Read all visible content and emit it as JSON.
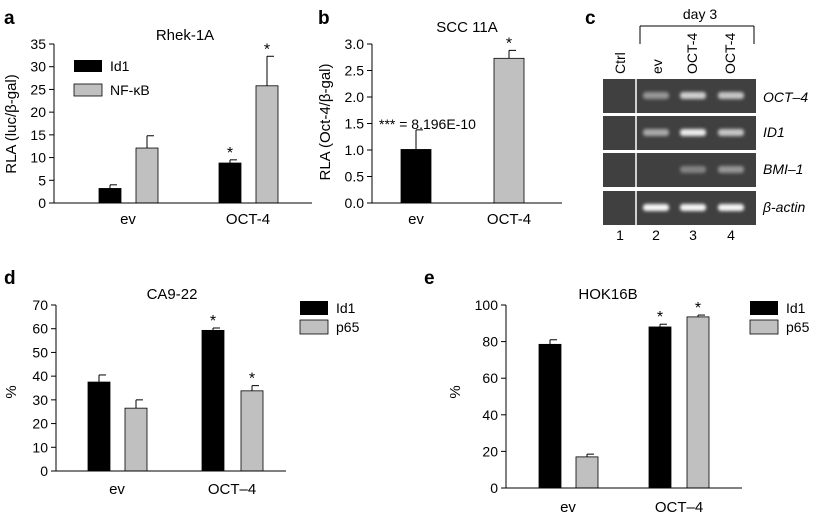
{
  "colors": {
    "series_dark": "#000000",
    "series_light": "#c0c0c0",
    "gel_bg": "#404040",
    "band": "#ffffff"
  },
  "chart_data": [
    {
      "panel": "a",
      "type": "bar",
      "title": "Rhek-1A",
      "ylabel": "RLA (luc/β-gal)",
      "xlabel": "",
      "ylim": [
        0,
        35
      ],
      "yticks": [
        "0",
        "5",
        "10",
        "15",
        "20",
        "25",
        "30",
        "35"
      ],
      "categories": [
        "ev",
        "OCT-4"
      ],
      "series": [
        {
          "name": "Id1",
          "color": "dark",
          "values": [
            3.2,
            8.8
          ],
          "errors": [
            0.8,
            0.7
          ],
          "stars": [
            "",
            "*"
          ]
        },
        {
          "name": "NF-κB",
          "color": "light",
          "values": [
            12.1,
            25.8
          ],
          "errors": [
            2.7,
            6.5
          ],
          "stars": [
            "",
            "*"
          ]
        }
      ],
      "legend": "top-left"
    },
    {
      "panel": "b",
      "type": "bar",
      "title": "SCC 11A",
      "ylabel": "RLA (Oct-4/β-gal)",
      "xlabel": "",
      "ylim": [
        0,
        3.0
      ],
      "yticks": [
        "0.0",
        "0.5",
        "1.0",
        "1.5",
        "2.0",
        "2.5",
        "3.0"
      ],
      "categories": [
        "ev",
        "OCT-4"
      ],
      "annotation": "*** = 8.196E-10",
      "series": [
        {
          "name": "RLA",
          "color": "mixed",
          "values": [
            1.01,
            2.73
          ],
          "errors": [
            0.37,
            0.15
          ],
          "stars": [
            "",
            "*"
          ]
        }
      ]
    },
    {
      "panel": "d",
      "type": "bar",
      "title": "CA9-22",
      "ylabel": "%",
      "xlabel": "",
      "ylim": [
        0,
        70
      ],
      "yticks": [
        "0",
        "10",
        "20",
        "30",
        "40",
        "50",
        "60",
        "70"
      ],
      "categories": [
        "ev",
        "OCT–4"
      ],
      "series": [
        {
          "name": "Id1",
          "color": "dark",
          "values": [
            37.5,
            59.3
          ],
          "errors": [
            3.0,
            1.0
          ],
          "stars": [
            "",
            "*"
          ]
        },
        {
          "name": "p65",
          "color": "light",
          "values": [
            26.5,
            33.8
          ],
          "errors": [
            3.5,
            2.2
          ],
          "stars": [
            "",
            "*"
          ]
        }
      ],
      "legend": "top-right"
    },
    {
      "panel": "e",
      "type": "bar",
      "title": "HOK16B",
      "ylabel": "%",
      "xlabel": "",
      "ylim": [
        0,
        100
      ],
      "yticks": [
        "0",
        "20",
        "40",
        "60",
        "80",
        "100"
      ],
      "categories": [
        "ev",
        "OCT–4"
      ],
      "series": [
        {
          "name": "Id1",
          "color": "dark",
          "values": [
            78.5,
            88.0
          ],
          "errors": [
            2.5,
            1.5
          ],
          "stars": [
            "",
            "*"
          ]
        },
        {
          "name": "p65",
          "color": "light",
          "values": [
            17.0,
            93.5
          ],
          "errors": [
            1.5,
            1.0
          ],
          "stars": [
            "",
            "*"
          ]
        }
      ],
      "legend": "top-right"
    }
  ],
  "gel": {
    "panel": "c",
    "header": "day 3",
    "lanes_top": [
      "Ctrl",
      "ev",
      "OCT-4",
      "OCT-4"
    ],
    "lane_numbers": [
      "1",
      "2",
      "3",
      "4"
    ],
    "rows": [
      {
        "gene": "OCT–4",
        "bands": [
          0.0,
          0.45,
          0.75,
          0.7
        ]
      },
      {
        "gene": "ID1",
        "bands": [
          0.0,
          0.55,
          0.9,
          0.7
        ]
      },
      {
        "gene": "BMI–1",
        "bands": [
          0.0,
          0.0,
          0.35,
          0.45
        ]
      },
      {
        "gene": "β-actin",
        "bands": [
          0.0,
          0.95,
          0.95,
          0.95
        ]
      }
    ]
  }
}
